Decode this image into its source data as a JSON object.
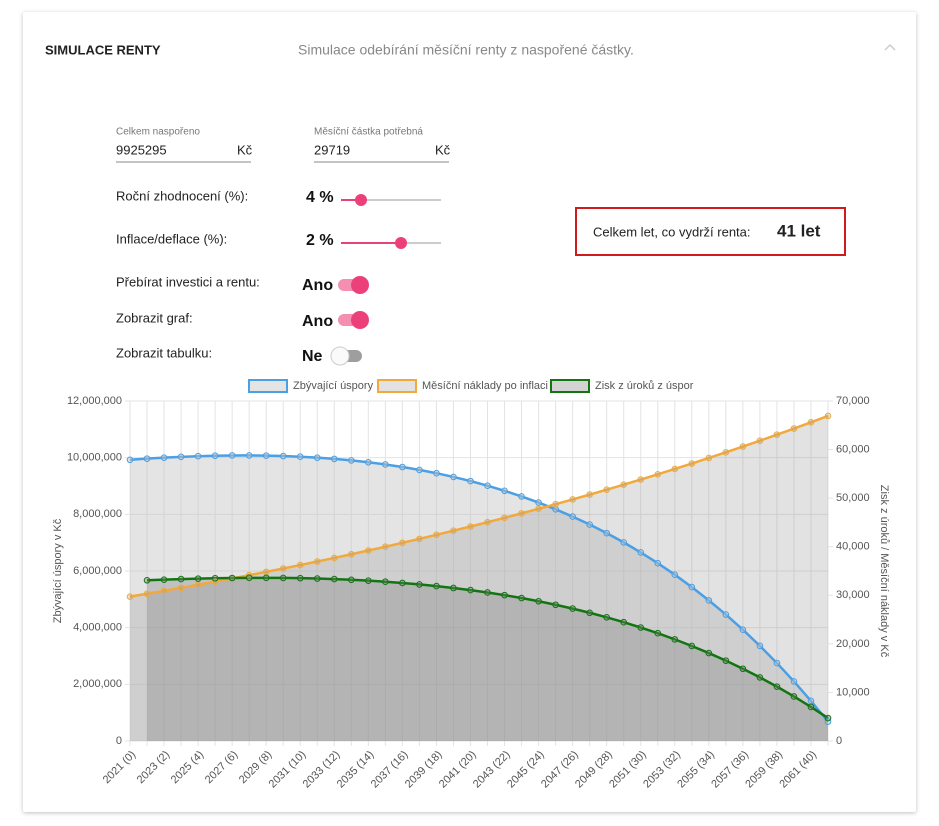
{
  "header": {
    "title": "SIMULACE RENTY",
    "subtitle": "Simulace odebírání měsíční renty z naspořené částky."
  },
  "inputs": [
    {
      "label": "Celkem naspořeno",
      "value": "9925295",
      "unit": "Kč"
    },
    {
      "label": "Měsíční částka potřebná",
      "value": "29719",
      "unit": "Kč"
    }
  ],
  "settings": [
    {
      "label": "Roční zhodnocení (%):",
      "value": "4 %"
    },
    {
      "label": "Inflace/deflace (%):",
      "value": "2 %"
    },
    {
      "label": "Přebírat investici a rentu:",
      "value": "Ano",
      "on": true
    },
    {
      "label": "Zobrazit graf:",
      "value": "Ano",
      "on": true
    },
    {
      "label": "Zobrazit tabulku:",
      "value": "Ne",
      "on": false
    }
  ],
  "result": {
    "label": "Celkem let, co vydrží renta:",
    "value": "41 let"
  },
  "chart_data": {
    "type": "line",
    "y_label": "Zbývající úspory v Kč",
    "y2_label": "Zisk z úroků / Měsíční náklady v Kč",
    "categories": [
      "2021 (0)",
      null,
      "2023 (2)",
      null,
      "2025 (4)",
      null,
      "2027 (6)",
      null,
      "2029 (8)",
      null,
      "2031 (10)",
      null,
      "2033 (12)",
      null,
      "2035 (14)",
      null,
      "2037 (16)",
      null,
      "2039 (18)",
      null,
      "2041 (20)",
      null,
      "2043 (22)",
      null,
      "2045 (24)",
      null,
      "2047 (26)",
      null,
      "2049 (28)",
      null,
      "2051 (30)",
      null,
      "2053 (32)",
      null,
      "2055 (34)",
      null,
      "2057 (36)",
      null,
      "2059 (38)",
      null,
      "2061 (40)",
      null
    ],
    "ylim": [
      0,
      12000000
    ],
    "yticks": [
      0,
      {
        "value": 2000000,
        "label": "2,000,000"
      },
      {
        "value": 4000000,
        "label": "4,000,000"
      },
      {
        "value": 6000000,
        "label": "6,000,000"
      },
      {
        "value": 8000000,
        "label": "8,000,000"
      },
      {
        "value": 10000000,
        "label": "10,000,000"
      },
      {
        "value": 12000000,
        "label": "12,000,000"
      }
    ],
    "y2lim": [
      0,
      70000
    ],
    "y2ticks": [
      0,
      {
        "value": 10000,
        "label": "10,000"
      },
      {
        "value": 20000,
        "label": "20,000"
      },
      {
        "value": 30000,
        "label": "30,000"
      },
      {
        "value": 40000,
        "label": "40,000"
      },
      {
        "value": 50000,
        "label": "50,000"
      },
      {
        "value": 60000,
        "label": "60,000"
      },
      {
        "value": 70000,
        "label": "70,000"
      }
    ],
    "grid": true,
    "legend": "top",
    "series": [
      {
        "name": "Zbývající úspory",
        "color": "#4a9fe5",
        "fill": "rgba(195,195,195,0.45)",
        "axis": "y",
        "values": [
          9925295,
          9965700,
          10000500,
          10029500,
          10052200,
          10068300,
          10077300,
          10078800,
          10072300,
          10057400,
          10033500,
          10000100,
          9956700,
          9902700,
          9837500,
          9760400,
          9670800,
          9568000,
          9451300,
          9320000,
          9173300,
          9010300,
          8830200,
          8632100,
          8415000,
          8178000,
          7920000,
          7640000,
          7336900,
          7009500,
          6656600,
          6276900,
          5869100,
          5431800,
          4963600,
          4462900,
          3928200,
          3357800,
          2750100,
          2103200,
          1415300,
          684400
        ]
      },
      {
        "name": "Měsíční náklady po inflaci",
        "color": "#f2a93b",
        "fill": "rgba(160,160,160,0.3)",
        "axis": "y2",
        "values": [
          29719,
          30313,
          30920,
          31538,
          32169,
          32812,
          33468,
          34138,
          34821,
          35517,
          36227,
          36952,
          37691,
          38445,
          39214,
          39998,
          40798,
          41614,
          42446,
          43295,
          44161,
          45044,
          45945,
          46864,
          47801,
          48757,
          49732,
          50727,
          51741,
          52776,
          53832,
          54908,
          56006,
          57127,
          58269,
          59435,
          60623,
          61836,
          63073,
          64334,
          65621,
          66933
        ]
      },
      {
        "name": "Zisk z úroků z úspor",
        "color": "#127512",
        "fill": "rgba(130,130,130,0.35)",
        "axis": "y2",
        "values": [
          null,
          33084,
          33219,
          33335,
          33432,
          33507,
          33561,
          33591,
          33596,
          33574,
          33525,
          33445,
          33334,
          33189,
          33009,
          32792,
          32535,
          32236,
          31893,
          31504,
          31067,
          30578,
          30034,
          29434,
          28774,
          28050,
          27260,
          26400,
          25467,
          24456,
          23365,
          22189,
          20923,
          19564,
          18106,
          16545,
          14876,
          13094,
          11193,
          9167,
          7011,
          4718
        ]
      }
    ]
  }
}
